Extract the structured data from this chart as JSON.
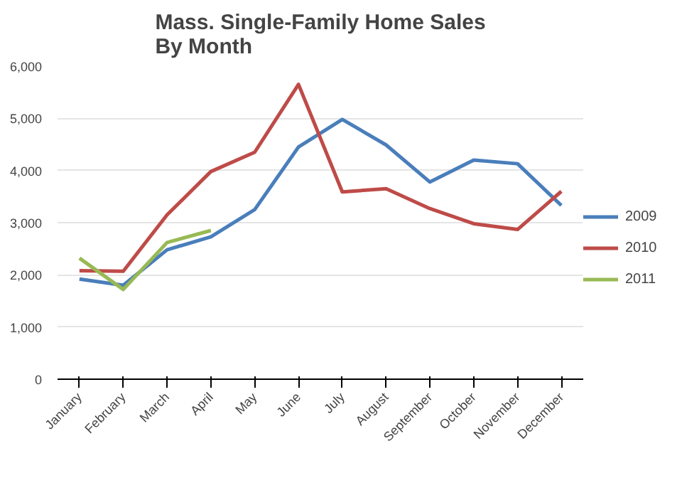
{
  "chart_data": {
    "type": "line",
    "title": "Mass. Single-Family Home Sales\nBy Month",
    "categories": [
      "January",
      "February",
      "March",
      "April",
      "May",
      "June",
      "July",
      "August",
      "September",
      "October",
      "November",
      "December"
    ],
    "series": [
      {
        "name": "2009",
        "color": "#4a7ebb",
        "values": [
          1920,
          1800,
          2480,
          2730,
          3250,
          4450,
          4980,
          4490,
          3780,
          4200,
          4130,
          3330
        ]
      },
      {
        "name": "2010",
        "color": "#be4b48",
        "values": [
          2080,
          2070,
          3150,
          3980,
          4350,
          5650,
          3590,
          3650,
          3270,
          2980,
          2870,
          3600
        ]
      },
      {
        "name": "2011",
        "color": "#98b954",
        "values": [
          2320,
          1720,
          2620,
          2850,
          null,
          null,
          null,
          null,
          null,
          null,
          null,
          null
        ]
      }
    ],
    "ylim": [
      0,
      6000
    ],
    "yticks": [
      {
        "value": 0,
        "label": "0"
      },
      {
        "value": 1000,
        "label": "1,000"
      },
      {
        "value": 2000,
        "label": "2,000"
      },
      {
        "value": 3000,
        "label": "3,000"
      },
      {
        "value": 4000,
        "label": "4,000"
      },
      {
        "value": 5000,
        "label": "5,000"
      },
      {
        "value": 6000,
        "label": "6,000"
      }
    ],
    "grid": "y",
    "legend": "right",
    "marker": "none",
    "line_style": "solid"
  }
}
